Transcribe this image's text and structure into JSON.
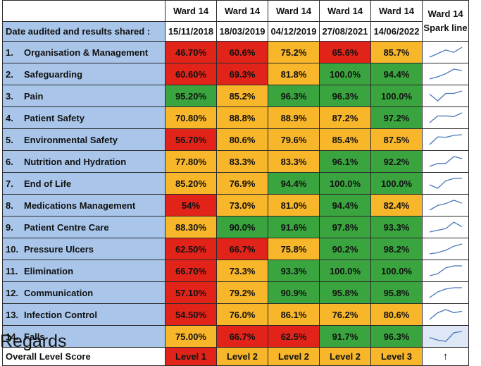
{
  "header": {
    "corner": "",
    "ward_columns": [
      "Ward 14",
      "Ward 14",
      "Ward 14",
      "Ward 14",
      "Ward 14"
    ],
    "sparkline_title_line1": "Ward 14",
    "sparkline_title_line2": "Spark line"
  },
  "date_row": {
    "label": "Date audited and results shared :",
    "dates": [
      "15/11/2018",
      "18/03/2019",
      "04/12/2019",
      "27/08/2021",
      "14/06/2022"
    ]
  },
  "rows": [
    {
      "num": "1.",
      "label": "Organisation & Management",
      "values": [
        "46.70%",
        "60.6%",
        "75.2%",
        "65.6%",
        "85.7%"
      ],
      "status": [
        "red",
        "red",
        "amber",
        "red",
        "amber"
      ],
      "spark": [
        46.7,
        60.6,
        75.2,
        65.6,
        85.7
      ]
    },
    {
      "num": "2.",
      "label": "Safeguarding",
      "values": [
        "60.60%",
        "69.3%",
        "81.8%",
        "100.0%",
        "94.4%"
      ],
      "status": [
        "red",
        "red",
        "amber",
        "green",
        "green"
      ],
      "spark": [
        60.6,
        69.3,
        81.8,
        100.0,
        94.4
      ]
    },
    {
      "num": "3.",
      "label": "Pain",
      "values": [
        "95.20%",
        "85.2%",
        "96.3%",
        "96.3%",
        "100.0%"
      ],
      "status": [
        "green",
        "amber",
        "green",
        "green",
        "green"
      ],
      "spark": [
        95.2,
        85.2,
        96.3,
        96.3,
        100.0
      ]
    },
    {
      "num": "4.",
      "label": "Patient Safety",
      "values": [
        "70.80%",
        "88.8%",
        "88.9%",
        "87.2%",
        "97.2%"
      ],
      "status": [
        "amber",
        "amber",
        "amber",
        "amber",
        "green"
      ],
      "spark": [
        70.8,
        88.8,
        88.9,
        87.2,
        97.2
      ]
    },
    {
      "num": "5.",
      "label": "Environmental Safety",
      "values": [
        "56.70%",
        "80.6%",
        "79.6%",
        "85.4%",
        "87.5%"
      ],
      "status": [
        "red",
        "amber",
        "amber",
        "amber",
        "amber"
      ],
      "spark": [
        56.7,
        80.6,
        79.6,
        85.4,
        87.5
      ]
    },
    {
      "num": "6.",
      "label": "Nutrition and Hydration",
      "values": [
        "77.80%",
        "83.3%",
        "83.3%",
        "96.1%",
        "92.2%"
      ],
      "status": [
        "amber",
        "amber",
        "amber",
        "green",
        "green"
      ],
      "spark": [
        77.8,
        83.3,
        83.3,
        96.1,
        92.2
      ]
    },
    {
      "num": "7.",
      "label": "End of Life",
      "values": [
        "85.20%",
        "76.9%",
        "94.4%",
        "100.0%",
        "100.0%"
      ],
      "status": [
        "amber",
        "amber",
        "green",
        "green",
        "green"
      ],
      "spark": [
        85.2,
        76.9,
        94.4,
        100.0,
        100.0
      ]
    },
    {
      "num": "8.",
      "label": "Medications Management",
      "values": [
        "54%",
        "73.0%",
        "81.0%",
        "94.4%",
        "82.4%"
      ],
      "status": [
        "red",
        "amber",
        "amber",
        "green",
        "amber"
      ],
      "spark": [
        54,
        73.0,
        81.0,
        94.4,
        82.4
      ]
    },
    {
      "num": "9.",
      "label": "Patient Centre Care",
      "values": [
        "88.30%",
        "90.0%",
        "91.6%",
        "97.8%",
        "93.3%"
      ],
      "status": [
        "amber",
        "green",
        "green",
        "green",
        "green"
      ],
      "spark": [
        88.3,
        90.0,
        91.6,
        97.8,
        93.3
      ]
    },
    {
      "num": "10.",
      "label": "Pressure Ulcers",
      "values": [
        "62.50%",
        "66.7%",
        "75.8%",
        "90.2%",
        "98.2%"
      ],
      "status": [
        "red",
        "red",
        "amber",
        "green",
        "green"
      ],
      "spark": [
        62.5,
        66.7,
        75.8,
        90.2,
        98.2
      ]
    },
    {
      "num": "11.",
      "label": "Elimination",
      "values": [
        "66.70%",
        "73.3%",
        "93.3%",
        "100.0%",
        "100.0%"
      ],
      "status": [
        "red",
        "amber",
        "green",
        "green",
        "green"
      ],
      "spark": [
        66.7,
        73.3,
        93.3,
        100.0,
        100.0
      ]
    },
    {
      "num": "12.",
      "label": "Communication",
      "values": [
        "57.10%",
        "79.2%",
        "90.9%",
        "95.8%",
        "95.8%"
      ],
      "status": [
        "red",
        "amber",
        "green",
        "green",
        "green"
      ],
      "spark": [
        57.1,
        79.2,
        90.9,
        95.8,
        95.8
      ]
    },
    {
      "num": "13.",
      "label": "Infection Control",
      "values": [
        "54.50%",
        "76.0%",
        "86.1%",
        "76.2%",
        "80.6%"
      ],
      "status": [
        "red",
        "amber",
        "amber",
        "amber",
        "amber"
      ],
      "spark": [
        54.5,
        76.0,
        86.1,
        76.2,
        80.6
      ]
    },
    {
      "num": "14.",
      "label": "Falls",
      "values": [
        "75.00%",
        "66.7%",
        "62.5%",
        "91.7%",
        "96.3%"
      ],
      "status": [
        "amber",
        "red",
        "red",
        "green",
        "green"
      ],
      "spark": [
        75.0,
        66.7,
        62.5,
        91.7,
        96.3
      ]
    }
  ],
  "overall": {
    "label": "Overall Level Score",
    "values": [
      "Level 1",
      "Level 2",
      "Level 2",
      "Level 2",
      "Level 3"
    ],
    "status": [
      "red",
      "amber",
      "amber",
      "amber",
      "amber"
    ],
    "trend_arrow": "↑"
  },
  "colors": {
    "red": "#e2231a",
    "amber": "#f8b62a",
    "green": "#3aa53f",
    "label_blue": "#a9c6ea",
    "spark_line": "#4a78b8"
  },
  "footer": {
    "text": "Regards"
  }
}
